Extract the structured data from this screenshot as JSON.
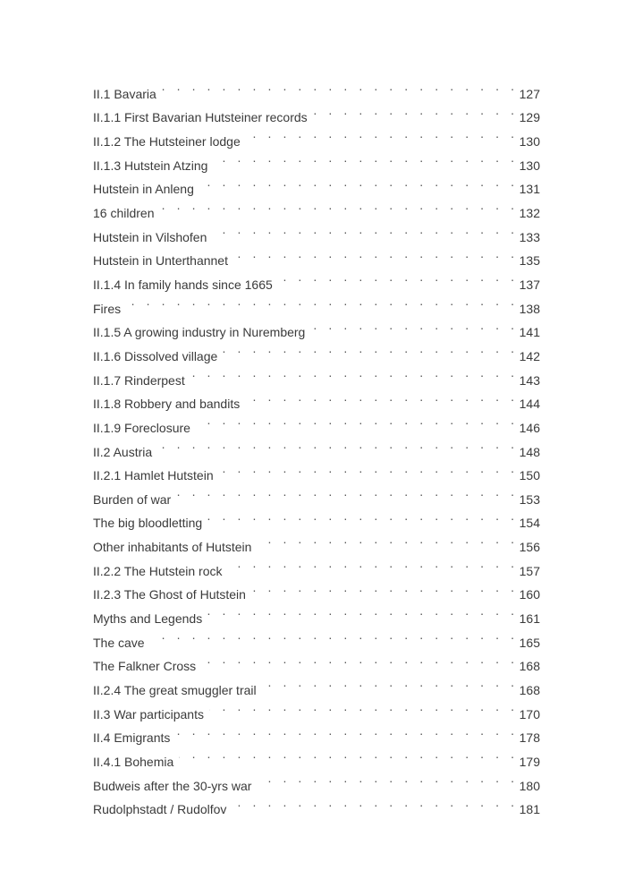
{
  "toc": [
    {
      "title": "II.1 Bavaria",
      "page": "127"
    },
    {
      "title": "II.1.1 First Bavarian Hutsteiner records",
      "page": "129"
    },
    {
      "title": "II.1.2 The Hutsteiner lodge",
      "page": "130"
    },
    {
      "title": "II.1.3 Hutstein Atzing",
      "page": "130"
    },
    {
      "title": "Hutstein in Anleng",
      "page": "131"
    },
    {
      "title": "16 children",
      "page": "132"
    },
    {
      "title": "Hutstein in Vilshofen",
      "page": "133"
    },
    {
      "title": "Hutstein in Unterthannet",
      "page": "135"
    },
    {
      "title": "II.1.4 In family hands since 1665",
      "page": "137"
    },
    {
      "title": "Fires",
      "page": "138"
    },
    {
      "title": "II.1.5 A growing industry in Nuremberg",
      "page": "141"
    },
    {
      "title": "II.1.6 Dissolved village",
      "page": "142"
    },
    {
      "title": "II.1.7 Rinderpest",
      "page": "143"
    },
    {
      "title": "II.1.8 Robbery and bandits",
      "page": "144"
    },
    {
      "title": "II.1.9 Foreclosure",
      "page": "146"
    },
    {
      "title": "II.2 Austria",
      "page": "148"
    },
    {
      "title": "II.2.1 Hamlet Hutstein",
      "page": "150"
    },
    {
      "title": "Burden of war",
      "page": "153"
    },
    {
      "title": "The big bloodletting",
      "page": "154"
    },
    {
      "title": "Other inhabitants of Hutstein",
      "page": "156"
    },
    {
      "title": "II.2.2 The Hutstein rock",
      "page": "157"
    },
    {
      "title": "II.2.3 The Ghost of Hutstein",
      "page": "160"
    },
    {
      "title": "Myths and Legends",
      "page": "161"
    },
    {
      "title": "The cave",
      "page": "165"
    },
    {
      "title": "The Falkner Cross",
      "page": "168"
    },
    {
      "title": "II.2.4 The great smuggler trail",
      "page": "168"
    },
    {
      "title": "II.3 War participants",
      "page": "170"
    },
    {
      "title": "II.4 Emigrants",
      "page": "178"
    },
    {
      "title": "II.4.1 Bohemia",
      "page": "179"
    },
    {
      "title": "Budweis after the 30-yrs war",
      "page": "180"
    },
    {
      "title": "Rudolphstadt / Rudolfov",
      "page": "181"
    }
  ]
}
